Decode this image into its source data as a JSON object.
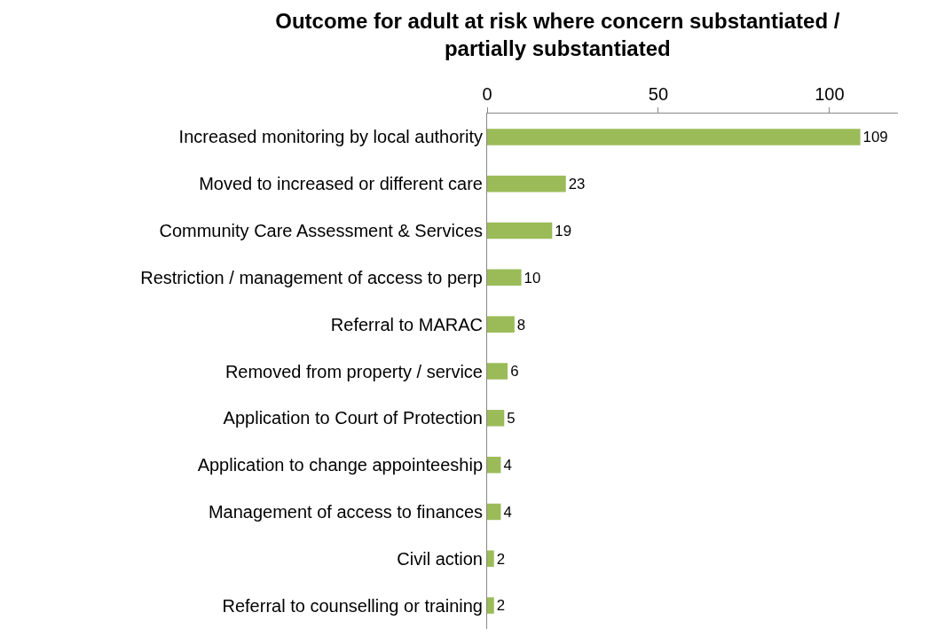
{
  "chart_data": {
    "type": "bar",
    "orientation": "horizontal",
    "title": "Outcome for adult at risk where concern substantiated / partially substantiated",
    "categories": [
      "Increased monitoring by local authority",
      "Moved to increased or different care",
      "Community Care Assessment & Services",
      "Restriction / management of access to perp",
      "Referral to MARAC",
      "Removed from property / service",
      "Application to Court of Protection",
      "Application to change appointeeship",
      "Management of access to finances",
      "Civil action",
      "Referral to counselling or training"
    ],
    "values": [
      109,
      23,
      19,
      10,
      8,
      6,
      5,
      4,
      4,
      2,
      2
    ],
    "color": "#9bbb59",
    "xlim": [
      0,
      120
    ],
    "xticks": [
      0,
      50,
      100
    ],
    "data_labels": true
  }
}
